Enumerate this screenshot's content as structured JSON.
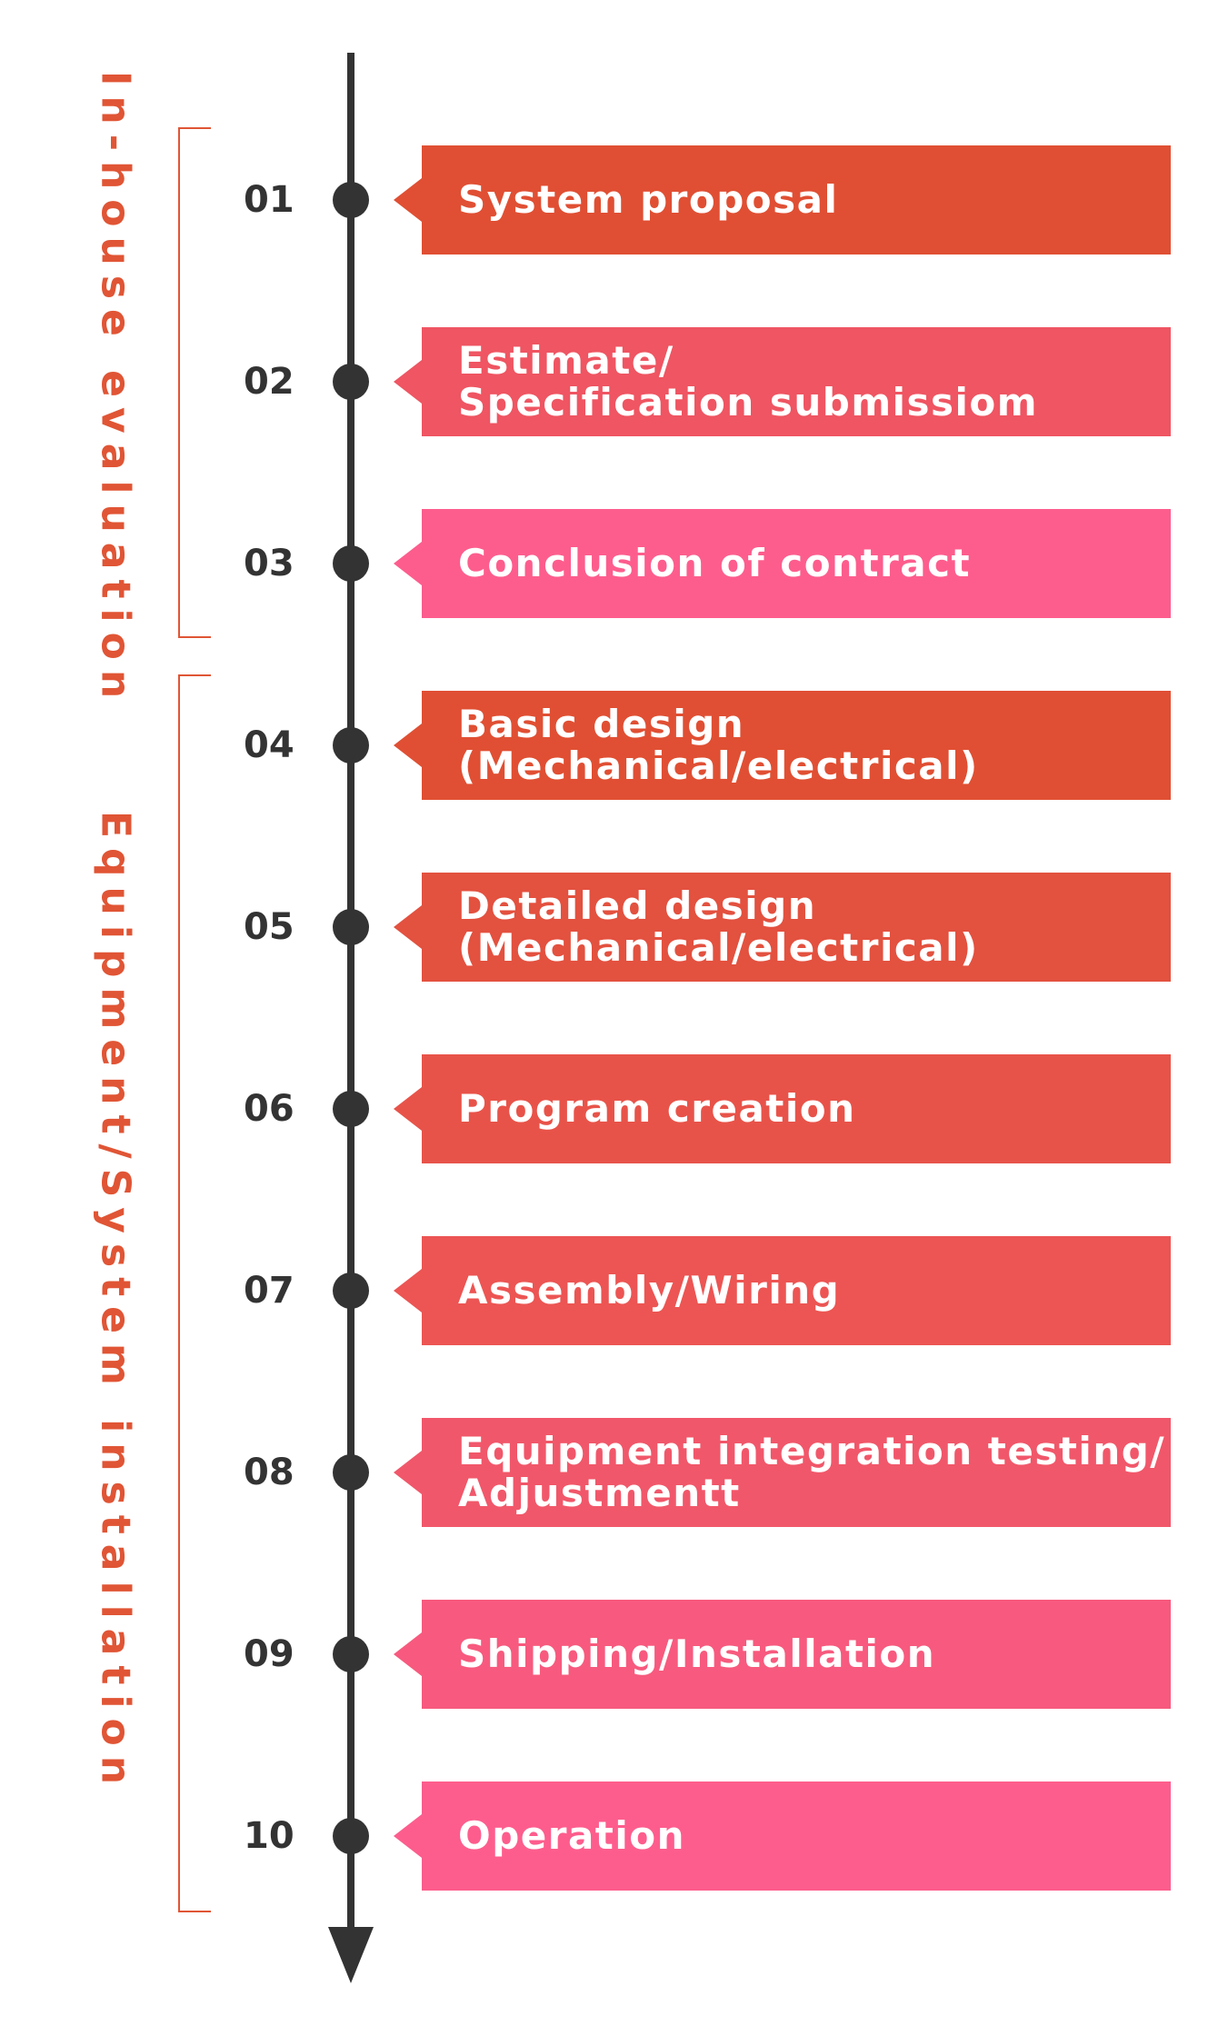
{
  "groups": [
    {
      "label": "In-house evaluation"
    },
    {
      "label": "Equipment/System installation"
    }
  ],
  "colors": {
    "accent": "#e05535",
    "line": "#333333",
    "palette": [
      "#e04f33",
      "#ef5562",
      "#fd5d8d"
    ]
  },
  "steps": [
    {
      "number": "01",
      "label": "System proposal",
      "color": "#e04f33"
    },
    {
      "number": "02",
      "label": "Estimate/\nSpecification submissiom",
      "color": "#ef5562"
    },
    {
      "number": "03",
      "label": "Conclusion of contract",
      "color": "#fd5d8d"
    },
    {
      "number": "04",
      "label": "Basic design\n(Mechanical/electrical)",
      "color": "#e04f33"
    },
    {
      "number": "05",
      "label": "Detailed design\n(Mechanical/electrical)",
      "color": "#e3513f"
    },
    {
      "number": "06",
      "label": "Program creation",
      "color": "#e85349"
    },
    {
      "number": "07",
      "label": "Assembly/Wiring",
      "color": "#ec5553"
    },
    {
      "number": "08",
      "label": "Equipment integration testing/\nAdjustmentt",
      "color": "#f1576a"
    },
    {
      "number": "09",
      "label": "Shipping/Installation",
      "color": "#f75a7e"
    },
    {
      "number": "10",
      "label": "Operation",
      "color": "#fd5d8d"
    }
  ]
}
